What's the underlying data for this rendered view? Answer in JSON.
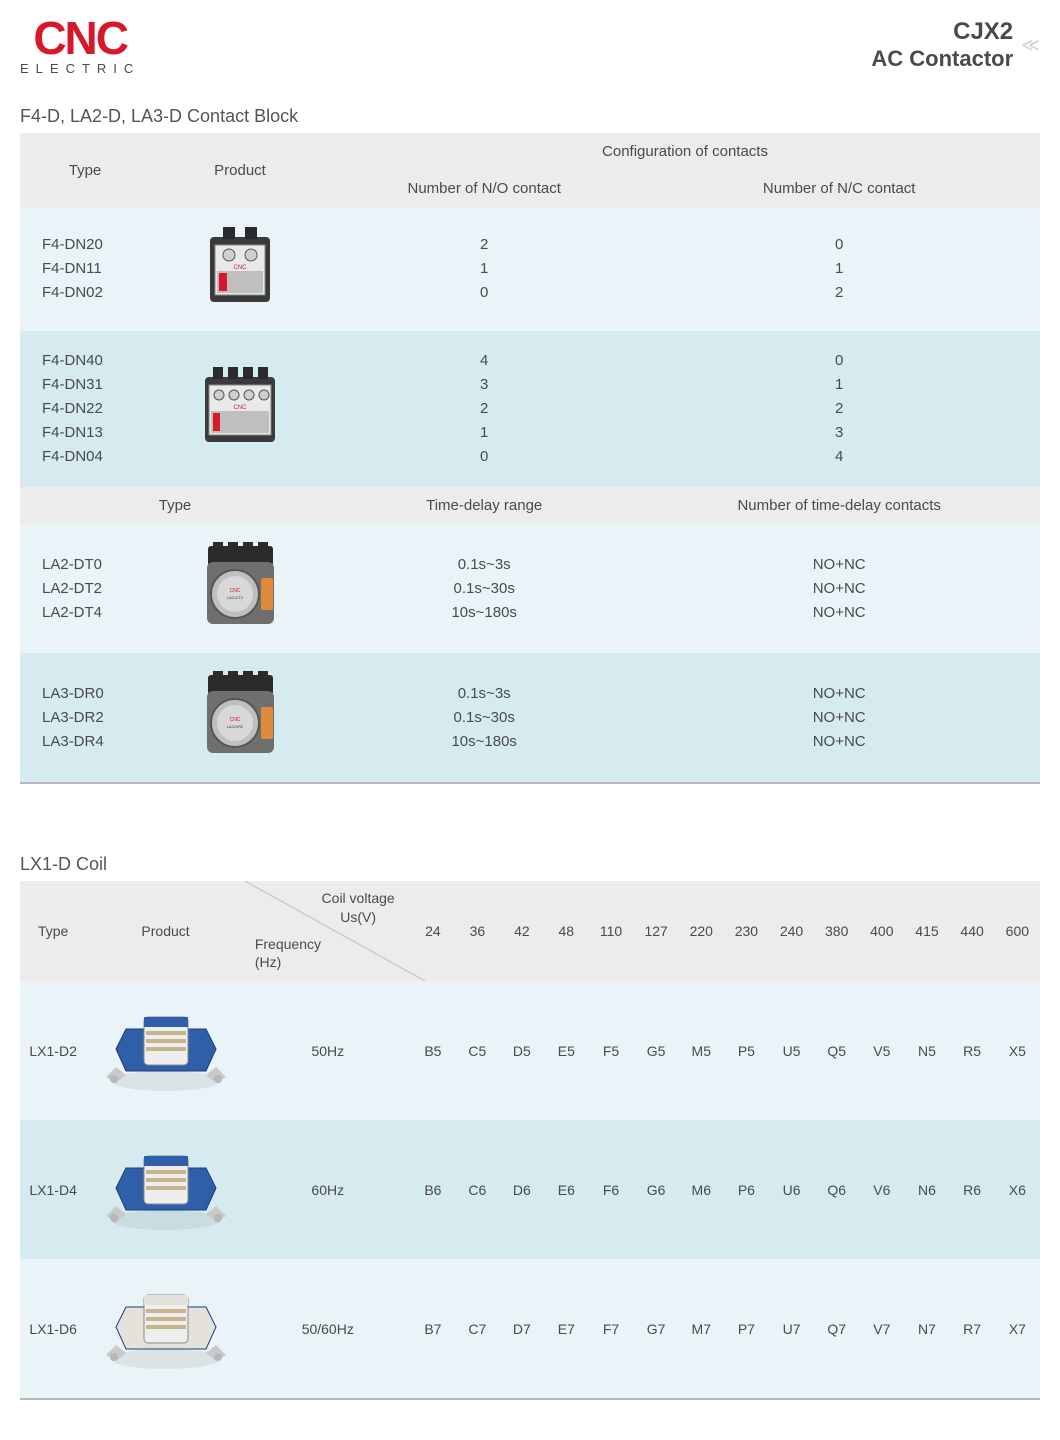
{
  "header": {
    "logo_main": "CNC",
    "logo_sub": "ELECTRIC",
    "title_main": "CJX2",
    "title_sub": "AC Contactor"
  },
  "table1": {
    "section_title": "F4-D, LA2-D, LA3-D Contact Block",
    "head_type": "Type",
    "head_product": "Product",
    "head_config": "Configuration of contacts",
    "head_no": "Number of N/O contact",
    "head_nc": "Number of N/C contact",
    "r1_types": "F4-DN20\nF4-DN11\nF4-DN02",
    "r1_no": "2\n1\n0",
    "r1_nc": "0\n1\n2",
    "r2_types": "F4-DN40\nF4-DN31\nF4-DN22\nF4-DN13\nF4-DN04",
    "r2_no": "4\n3\n2\n1\n0",
    "r2_nc": "0\n1\n2\n3\n4",
    "sub_head_type": "Type",
    "sub_head_range": "Time-delay range",
    "sub_head_contacts": "Number of time-delay contacts",
    "r3_types": "LA2-DT0\nLA2-DT2\nLA2-DT4",
    "r3_range": "0.1s~3s\n0.1s~30s\n10s~180s",
    "r3_contacts": "NO+NC\nNO+NC\nNO+NC",
    "r4_types": "LA3-DR0\nLA3-DR2\nLA3-DR4",
    "r4_range": "0.1s~3s\n0.1s~30s\n10s~180s",
    "r4_contacts": "NO+NC\nNO+NC\nNO+NC"
  },
  "table2": {
    "section_title": "LX1-D Coil",
    "head_type": "Type",
    "head_product": "Product",
    "diag_upper": "Coil voltage\nUs(V)",
    "diag_lower": "Frequency\n(Hz)",
    "voltages": [
      "24",
      "36",
      "42",
      "48",
      "110",
      "127",
      "220",
      "230",
      "240",
      "380",
      "400",
      "415",
      "440",
      "600"
    ],
    "rows": [
      {
        "type": "LX1-D2",
        "freq": "50Hz",
        "codes": [
          "B5",
          "C5",
          "D5",
          "E5",
          "F5",
          "G5",
          "M5",
          "P5",
          "U5",
          "Q5",
          "V5",
          "N5",
          "R5",
          "X5"
        ],
        "coil_color": "#2f5fa8"
      },
      {
        "type": "LX1-D4",
        "freq": "60Hz",
        "codes": [
          "B6",
          "C6",
          "D6",
          "E6",
          "F6",
          "G6",
          "M6",
          "P6",
          "U6",
          "Q6",
          "V6",
          "N6",
          "R6",
          "X6"
        ],
        "coil_color": "#2f5fa8"
      },
      {
        "type": "LX1-D6",
        "freq": "50/60Hz",
        "codes": [
          "B7",
          "C7",
          "D7",
          "E7",
          "F7",
          "G7",
          "M7",
          "P7",
          "U7",
          "Q7",
          "V7",
          "N7",
          "R7",
          "X7"
        ],
        "coil_color": "#e5e2dc"
      }
    ]
  },
  "colors": {
    "header_bg": "#ececec",
    "row_even": "#eaf3f7",
    "row_odd": "#d6ebf0",
    "logo_red": "#d7182a",
    "text": "#4a4a4a"
  }
}
